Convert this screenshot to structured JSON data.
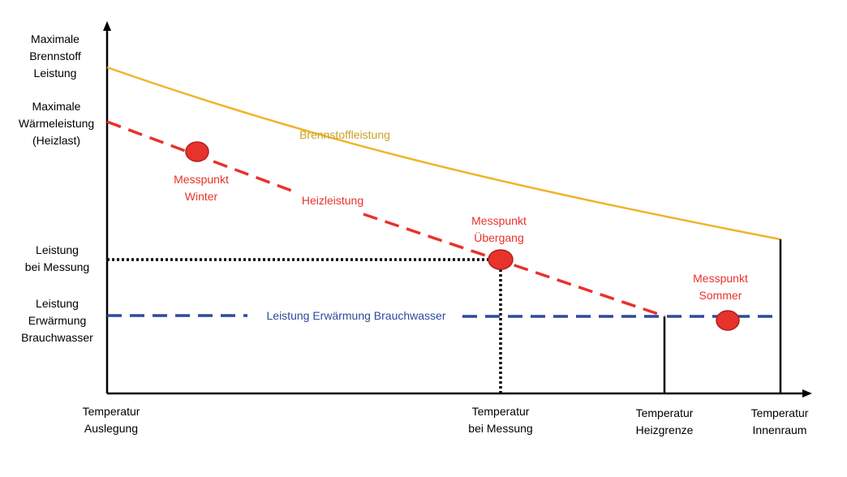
{
  "colors": {
    "brennstoff": "#f0b429",
    "heizleistung": "#e8322c",
    "brauchwasser": "#2e4a9c",
    "axis": "#000000",
    "messpunkt": "#e8322c"
  },
  "y_axis_labels": {
    "brennstoff": "Maximale\nBrennstoff\nLeistung",
    "heizlast": "Maximale\nWärmeleistung\n(Heizlast)",
    "messung": "Leistung\nbei Messung",
    "brauchwasser": "Leistung\nErwärmung\nBrauchwasser"
  },
  "x_axis_labels": {
    "auslegung": "Temperatur\nAuslegung",
    "messung": "Temperatur\nbei Messung",
    "heizgrenze": "Temperatur\nHeizgrenze",
    "innenraum": "Temperatur\nInnenraum"
  },
  "curve_labels": {
    "brennstoff": "Brennstoffleistung",
    "heizleistung": "Heizleistung",
    "brauchwasser": "Leistung Erwärmung Brauchwasser"
  },
  "points": {
    "winter": "Messpunkt\nWinter",
    "uebergang": "Messpunkt\nÜbergang",
    "sommer": "Messpunkt\nSommer"
  }
}
